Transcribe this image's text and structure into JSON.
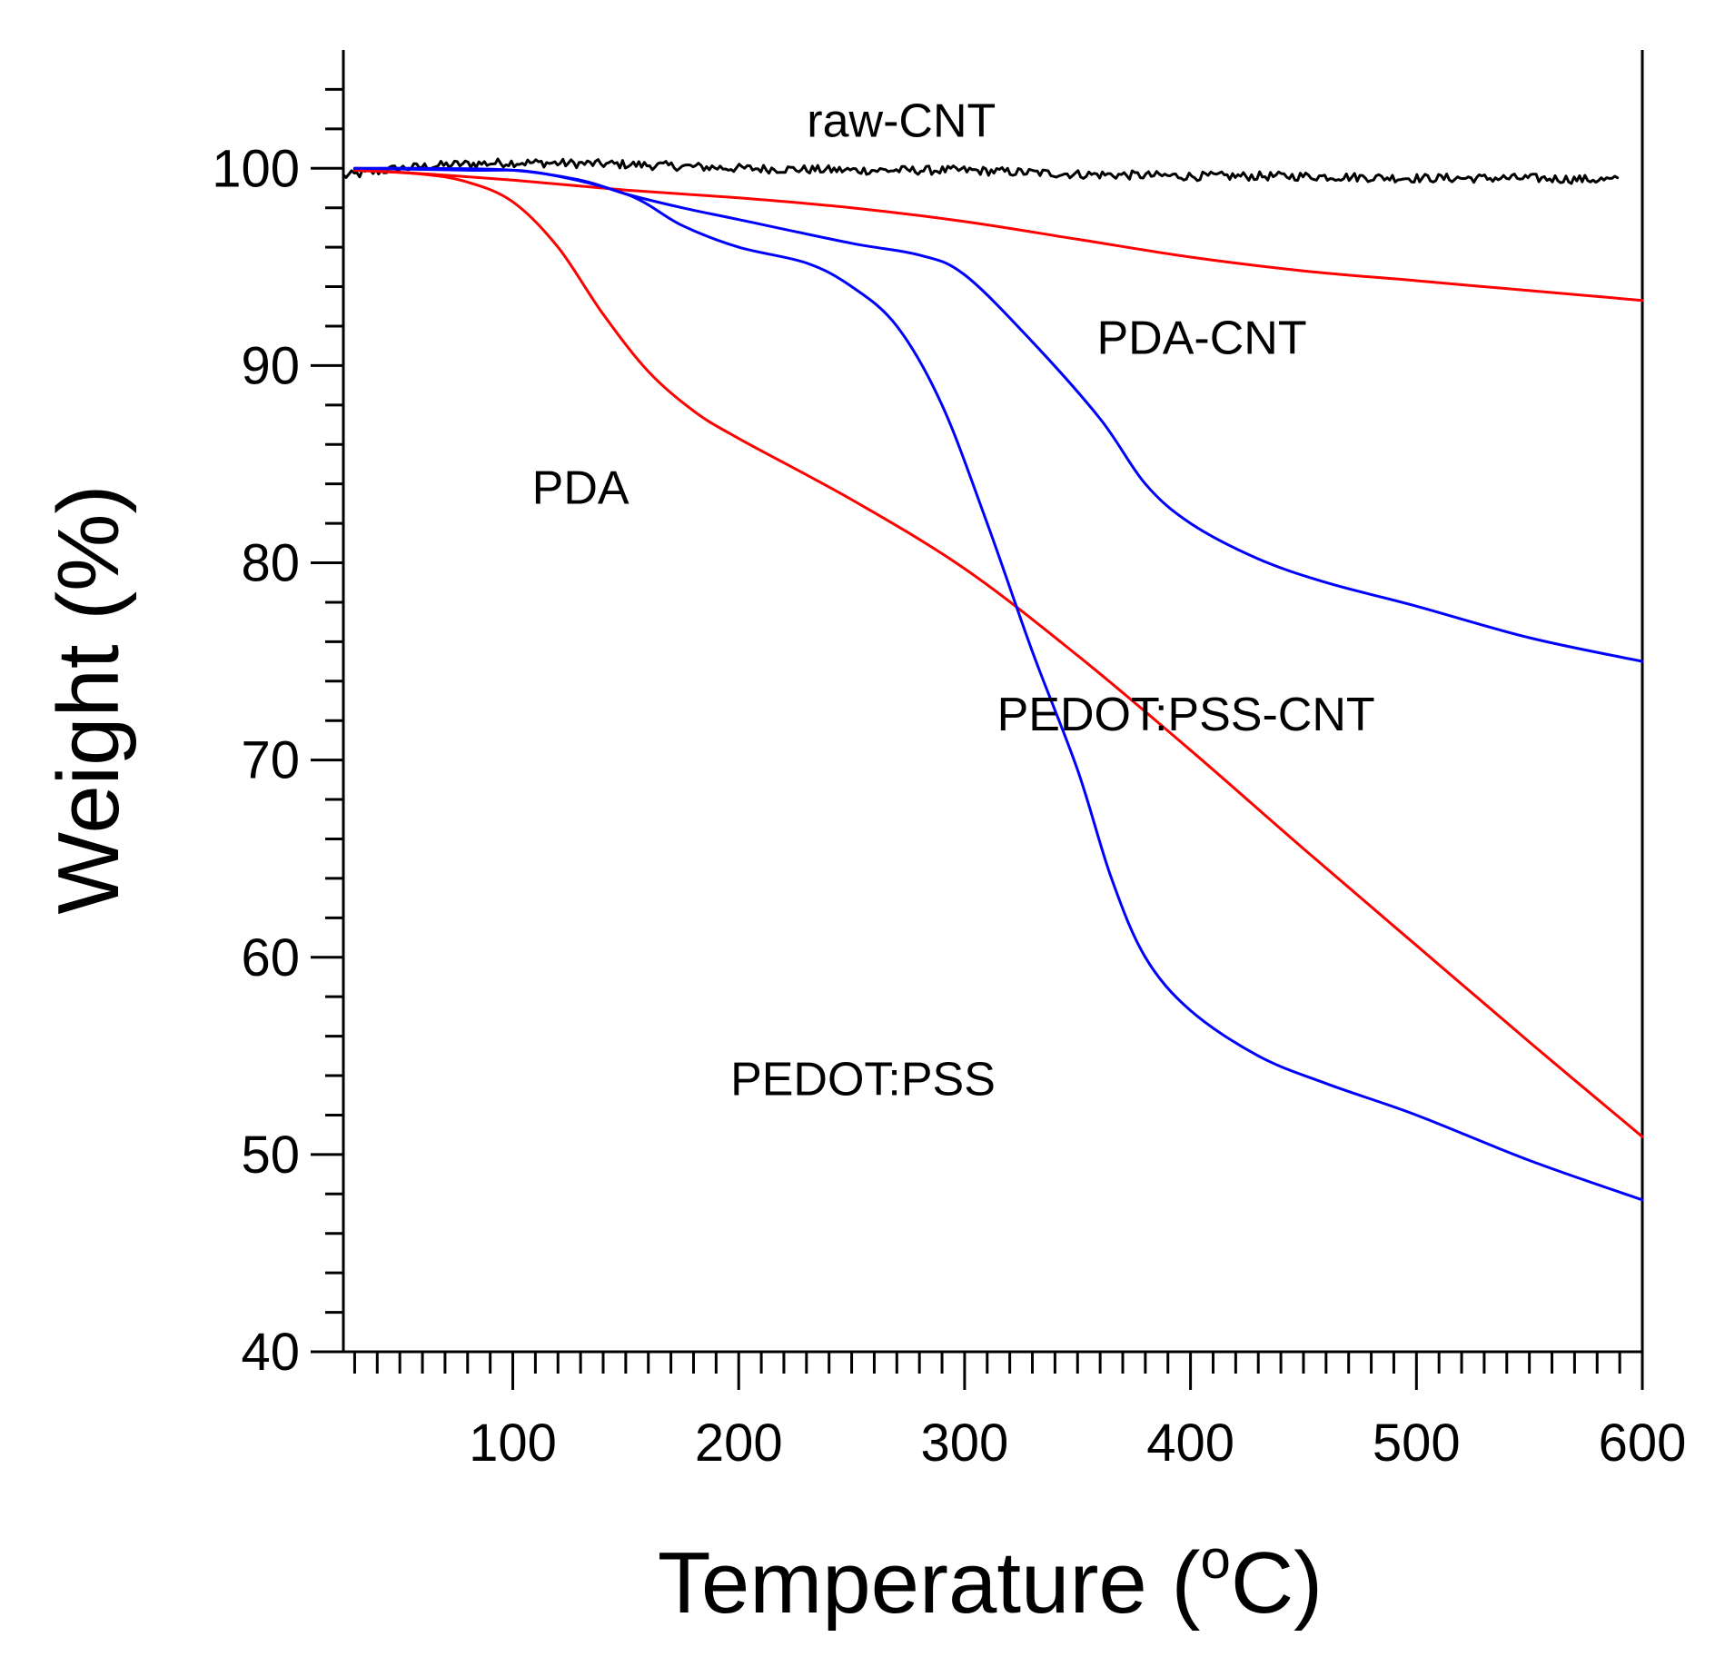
{
  "chart_data": {
    "type": "line",
    "title": "",
    "xlabel": "Temperature",
    "xlabel_unit_sup": "o",
    "xlabel_unit_tail": "C)",
    "ylabel": "Weight (%)",
    "xlim": [
      25,
      600
    ],
    "ylim": [
      40,
      106
    ],
    "x_ticks": [
      100,
      200,
      300,
      400,
      500,
      600
    ],
    "y_ticks": [
      40,
      50,
      60,
      70,
      80,
      90,
      100
    ],
    "series": [
      {
        "name": "raw-CNT",
        "color": "#000000",
        "noise": true,
        "x": [
          25,
          50,
          75,
          100,
          150,
          200,
          250,
          300,
          350,
          400,
          450,
          500,
          550,
          590
        ],
        "y": [
          99.6,
          100.0,
          100.2,
          100.3,
          100.2,
          100.0,
          99.9,
          99.9,
          99.7,
          99.6,
          99.6,
          99.5,
          99.5,
          99.4
        ]
      },
      {
        "name": "PDA-CNT",
        "color": "#ff0000",
        "x": [
          30,
          50,
          100,
          150,
          200,
          250,
          300,
          350,
          400,
          450,
          500,
          550,
          600
        ],
        "y": [
          99.9,
          99.8,
          99.4,
          98.9,
          98.5,
          98.0,
          97.3,
          96.4,
          95.5,
          94.8,
          94.3,
          93.8,
          93.3
        ]
      },
      {
        "name": "PDA",
        "color": "#ff0000",
        "x": [
          30,
          60,
          80,
          100,
          120,
          140,
          160,
          180,
          200,
          250,
          300,
          350,
          400,
          450,
          500,
          550,
          600
        ],
        "y": [
          99.9,
          99.7,
          99.3,
          98.3,
          96.0,
          92.6,
          89.7,
          87.7,
          86.3,
          83.2,
          79.7,
          75.3,
          70.5,
          65.5,
          60.6,
          55.7,
          50.9
        ]
      },
      {
        "name": "PEDOT:PSS-CNT",
        "color": "#0000ff",
        "x": [
          30,
          60,
          100,
          130,
          150,
          175,
          200,
          250,
          280,
          300,
          330,
          360,
          380,
          400,
          430,
          460,
          500,
          550,
          600
        ],
        "y": [
          100.0,
          100.0,
          99.9,
          99.4,
          98.7,
          98.0,
          97.4,
          96.2,
          95.6,
          94.6,
          91.2,
          87.3,
          84.0,
          82.0,
          80.2,
          79.0,
          77.8,
          76.2,
          75.0
        ]
      },
      {
        "name": "PEDOT:PSS",
        "color": "#0000ff",
        "x": [
          30,
          80,
          110,
          150,
          175,
          200,
          230,
          250,
          270,
          290,
          310,
          330,
          350,
          365,
          380,
          400,
          430,
          460,
          500,
          550,
          600
        ],
        "y": [
          100.0,
          99.9,
          99.8,
          98.7,
          97.1,
          96.0,
          95.2,
          94.0,
          92.0,
          88.0,
          82.0,
          75.5,
          69.5,
          64.0,
          60.0,
          57.3,
          55.0,
          53.6,
          52.0,
          49.7,
          47.7
        ]
      }
    ],
    "annotations": [
      {
        "text": "raw-CNT",
        "x": 272,
        "y": 101.6
      },
      {
        "text": "PDA-CNT",
        "x": 405,
        "y": 90.6
      },
      {
        "text": "PDA",
        "x": 130,
        "y": 83.0
      },
      {
        "text": "PEDOT:PSS-CNT",
        "x": 398,
        "y": 71.5
      },
      {
        "text": "PEDOT:PSS",
        "x": 255,
        "y": 53.0
      }
    ],
    "grid": false,
    "legend": "none"
  }
}
